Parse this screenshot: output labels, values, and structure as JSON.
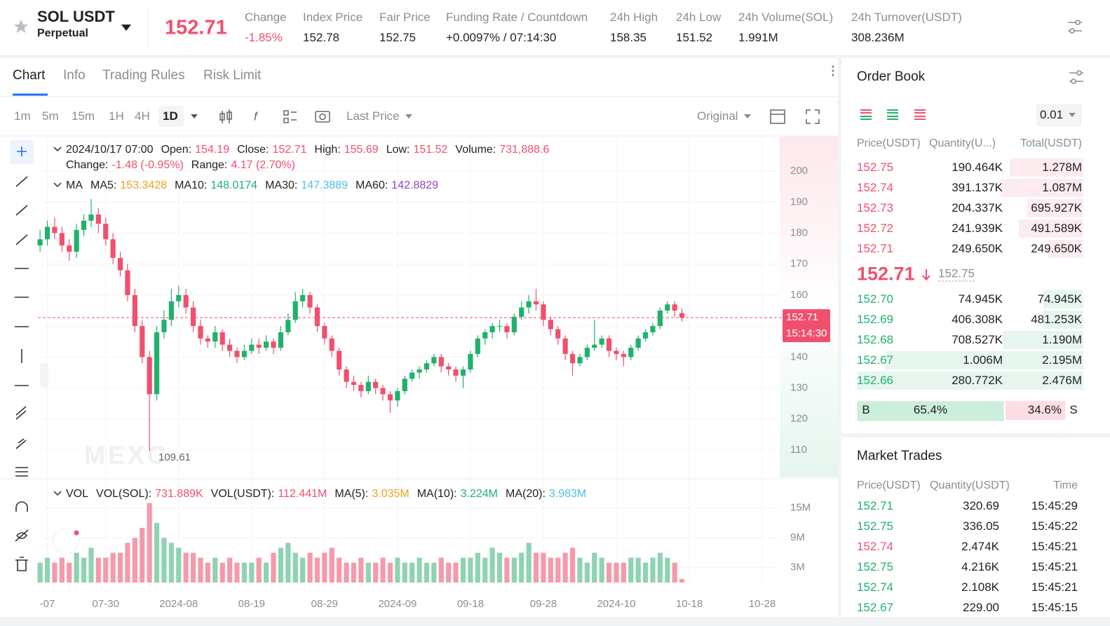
{
  "header": {
    "symbol": "SOL USDT",
    "contract": "Perpetual",
    "last_price": "152.71",
    "stats": [
      {
        "label": "Change",
        "value": "-1.85%"
      },
      {
        "label": "Index Price",
        "value": "152.78"
      },
      {
        "label": "Fair Price",
        "value": "152.75"
      },
      {
        "label": "Funding Rate / Countdown",
        "value": "+0.0097% / 07:14:30"
      },
      {
        "label": "24h High",
        "value": "158.35"
      },
      {
        "label": "24h Low",
        "value": "151.52"
      },
      {
        "label": "24h Volume(SOL)",
        "value": "1.991M"
      },
      {
        "label": "24h Turnover(USDT)",
        "value": "308.236M"
      }
    ]
  },
  "tabs": [
    "Chart",
    "Info",
    "Trading Rules",
    "Risk Limit"
  ],
  "toolbar": {
    "intervals": [
      "1m",
      "5m",
      "15m",
      "1H",
      "4H",
      "1D"
    ],
    "price_source": "Last Price",
    "view": "Original"
  },
  "chart_data": [
    {
      "type": "candlestick",
      "up_color": "#20b26c",
      "down_color": "#f0506e",
      "grid": true,
      "ylim": [
        101.4,
        211.1
      ],
      "yticks": [
        110,
        120,
        130,
        140,
        150,
        160,
        170,
        180,
        190,
        200
      ],
      "xlim": [
        -0.3,
        101.4
      ],
      "last_price_time": "15:14:30",
      "watermark": "MEXC",
      "ohlc_legend": {
        "date": "2024/10/17 07:00",
        "open": "Open:",
        "close": "Close:",
        "high": "High:",
        "low": "Low:",
        "volume": "Volume:",
        "volume_value": "731,888.6",
        "change": "Change:",
        "change_value": "-1.48 (-0.95%)",
        "range": "Range:",
        "range_value": "4.17 (2.70%)"
      },
      "ma_legend": {
        "title": "MA",
        "items": [
          {
            "label": "MA5:",
            "value": "153.3428",
            "color": "#f0a020"
          },
          {
            "label": "MA10:",
            "value": "148.0174",
            "color": "#1fae78"
          },
          {
            "label": "MA30:",
            "value": "147.3889",
            "color": "#4cc0e8"
          },
          {
            "label": "MA60:",
            "value": "142.8829",
            "color": "#8e44c9"
          }
        ]
      },
      "candles": [
        [
          176,
          181,
          174,
          178
        ],
        [
          178,
          184,
          176,
          182
        ],
        [
          182,
          185,
          178,
          180
        ],
        [
          180,
          182,
          174,
          176
        ],
        [
          176,
          178,
          171,
          174
        ],
        [
          174,
          183,
          172,
          181
        ],
        [
          181,
          186,
          179,
          184
        ],
        [
          184,
          191,
          182,
          186
        ],
        [
          186,
          188,
          180,
          183
        ],
        [
          183,
          185,
          176,
          178
        ],
        [
          178,
          180,
          170,
          172
        ],
        [
          172,
          174,
          166,
          168
        ],
        [
          168,
          170,
          158,
          160
        ],
        [
          160,
          162,
          148,
          150
        ],
        [
          150,
          152,
          138,
          140
        ],
        [
          140,
          142,
          109.61,
          128
        ],
        [
          128,
          150,
          126,
          148
        ],
        [
          148,
          155,
          146,
          152
        ],
        [
          152,
          162,
          150,
          158
        ],
        [
          158,
          163,
          156,
          160
        ],
        [
          160,
          162,
          154,
          156
        ],
        [
          156,
          158,
          148,
          150
        ],
        [
          150,
          152,
          144,
          146
        ],
        [
          146,
          147,
          143,
          145
        ],
        [
          145,
          150,
          143,
          148
        ],
        [
          148,
          149,
          142,
          144
        ],
        [
          144,
          146,
          140,
          142
        ],
        [
          142,
          143,
          138,
          140
        ],
        [
          140,
          144,
          139,
          142
        ],
        [
          142,
          146,
          141,
          144
        ],
        [
          144,
          146,
          141,
          143
        ],
        [
          143,
          147,
          142,
          145
        ],
        [
          145,
          146,
          141,
          143
        ],
        [
          143,
          150,
          142,
          148
        ],
        [
          148,
          154,
          147,
          152
        ],
        [
          152,
          161,
          151,
          158
        ],
        [
          158,
          162,
          156,
          160
        ],
        [
          160,
          161,
          154,
          156
        ],
        [
          156,
          157,
          148,
          150
        ],
        [
          150,
          151,
          144,
          146
        ],
        [
          146,
          147,
          140,
          142
        ],
        [
          142,
          143,
          134,
          136
        ],
        [
          136,
          137,
          130,
          132
        ],
        [
          132,
          134,
          129,
          131
        ],
        [
          131,
          132,
          127,
          129
        ],
        [
          129,
          134,
          128,
          132
        ],
        [
          132,
          133,
          128,
          130
        ],
        [
          130,
          131,
          126,
          128
        ],
        [
          128,
          129,
          122,
          126
        ],
        [
          126,
          130,
          124,
          129
        ],
        [
          129,
          134,
          128,
          133
        ],
        [
          133,
          136,
          132,
          135
        ],
        [
          135,
          137,
          133,
          136
        ],
        [
          136,
          139,
          135,
          138
        ],
        [
          138,
          141,
          137,
          140
        ],
        [
          140,
          141,
          135,
          137
        ],
        [
          137,
          138,
          134,
          136
        ],
        [
          136,
          137,
          132,
          134
        ],
        [
          134,
          137,
          130,
          136
        ],
        [
          136,
          142,
          135,
          141
        ],
        [
          141,
          147,
          140,
          146
        ],
        [
          146,
          149,
          144,
          148
        ],
        [
          148,
          151,
          146,
          150
        ],
        [
          150,
          152,
          148,
          150
        ],
        [
          150,
          151,
          146,
          148
        ],
        [
          148,
          154,
          147,
          153
        ],
        [
          153,
          158,
          152,
          156
        ],
        [
          156,
          160,
          154,
          158
        ],
        [
          158,
          162,
          155,
          157
        ],
        [
          157,
          158,
          150,
          152
        ],
        [
          152,
          153,
          147,
          149
        ],
        [
          149,
          150,
          144,
          146
        ],
        [
          146,
          147,
          139,
          141
        ],
        [
          141,
          142,
          134,
          138
        ],
        [
          138,
          141,
          137,
          140
        ],
        [
          140,
          144,
          139,
          143
        ],
        [
          143,
          152,
          142,
          144
        ],
        [
          144,
          147,
          143,
          146
        ],
        [
          146,
          147,
          140,
          142
        ],
        [
          142,
          143,
          139,
          141
        ],
        [
          141,
          142,
          137,
          140
        ],
        [
          140,
          144,
          139,
          143
        ],
        [
          143,
          147,
          142,
          146
        ],
        [
          146,
          149,
          145,
          148
        ],
        [
          148,
          151,
          147,
          150
        ],
        [
          150,
          156,
          149,
          155
        ],
        [
          155,
          158,
          154,
          157
        ],
        [
          157,
          158,
          153,
          155
        ],
        [
          154.19,
          155.69,
          151.52,
          152.71
        ]
      ]
    },
    {
      "type": "bar",
      "title": "VOL",
      "up_color": "#8fd3b2",
      "down_color": "#f59aaa",
      "grid": true,
      "ylim": [
        0,
        19.9
      ],
      "yticks": [
        {
          "value": 3,
          "label": "3M"
        },
        {
          "value": 9,
          "label": "9M"
        },
        {
          "value": 15,
          "label": "15M"
        }
      ],
      "xlim": [
        -0.3,
        101.4
      ],
      "xticks": [
        {
          "value": 1,
          "label": "-07"
        },
        {
          "value": 9,
          "label": "07-30"
        },
        {
          "value": 19,
          "label": "2024-08"
        },
        {
          "value": 29,
          "label": "08-19"
        },
        {
          "value": 39,
          "label": "08-29"
        },
        {
          "value": 49,
          "label": "2024-09"
        },
        {
          "value": 59,
          "label": "09-18"
        },
        {
          "value": 69,
          "label": "09-28"
        },
        {
          "value": 79,
          "label": "2024-10"
        },
        {
          "value": 89,
          "label": "10-18"
        },
        {
          "value": 99,
          "label": "10-28"
        }
      ],
      "legend": [
        {
          "label": "VOL(SOL):",
          "value": "731.889K",
          "color": "#f0506e"
        },
        {
          "label": "VOL(USDT):",
          "value": "112.441M",
          "color": "#f0506e"
        },
        {
          "label": "MA(5):",
          "value": "3.035M",
          "color": "#f0a020"
        },
        {
          "label": "MA(10):",
          "value": "3.224M",
          "color": "#1fae78"
        },
        {
          "label": "MA(20):",
          "value": "3.983M",
          "color": "#4cc0e8"
        }
      ],
      "values": [
        4,
        5,
        4,
        5,
        4,
        6,
        5,
        7,
        5,
        5,
        6,
        6,
        8,
        9,
        11,
        16,
        12,
        9,
        8,
        7,
        6,
        6,
        5,
        4,
        5,
        4,
        5,
        4,
        4,
        4,
        5,
        4,
        6,
        7,
        8,
        6,
        5,
        6,
        5,
        6,
        7,
        5,
        4,
        4,
        5,
        4,
        4,
        5,
        4,
        5,
        4,
        4,
        5,
        4,
        4,
        5,
        4,
        4,
        5,
        5,
        6,
        5,
        7,
        6,
        5,
        5,
        6,
        8,
        6,
        6,
        5,
        5,
        6,
        7,
        5,
        4,
        6,
        5,
        4,
        4,
        4,
        5,
        5,
        4,
        5,
        6,
        5,
        4,
        0.731889
      ]
    }
  ],
  "order_book": {
    "title": "Order Book",
    "precision": "0.01",
    "columns": [
      "Price(USDT)",
      "Quantity(U...)",
      "Total(USDT)"
    ],
    "asks": [
      [
        "152.75",
        "190.464K",
        "1.278M"
      ],
      [
        "152.74",
        "391.137K",
        "1.087M"
      ],
      [
        "152.73",
        "204.337K",
        "695.927K"
      ],
      [
        "152.72",
        "241.939K",
        "491.589K"
      ],
      [
        "152.71",
        "249.650K",
        "249.650K"
      ]
    ],
    "last_price": "152.71",
    "fair_price": "152.75",
    "bids": [
      [
        "152.70",
        "74.945K",
        "74.945K"
      ],
      [
        "152.69",
        "406.308K",
        "481.253K"
      ],
      [
        "152.68",
        "708.527K",
        "1.190M"
      ],
      [
        "152.67",
        "1.006M",
        "2.195M"
      ],
      [
        "152.66",
        "280.772K",
        "2.476M"
      ]
    ],
    "buy_label": "B",
    "buy_ratio": "65.4%",
    "sell_ratio": "34.6%",
    "sell_label": "S"
  },
  "market_trades": {
    "title": "Market Trades",
    "columns": [
      "Price(USDT)",
      "Quantity(USDT)",
      "Time"
    ],
    "rows": [
      {
        "price": "152.71",
        "quantity": "320.69",
        "time": "15:45:29",
        "side": "buy"
      },
      {
        "price": "152.75",
        "quantity": "336.05",
        "time": "15:45:22",
        "side": "buy"
      },
      {
        "price": "152.74",
        "quantity": "2.474K",
        "time": "15:45:21",
        "side": "sell"
      },
      {
        "price": "152.75",
        "quantity": "4.216K",
        "time": "15:45:21",
        "side": "buy"
      },
      {
        "price": "152.74",
        "quantity": "2.108K",
        "time": "15:45:21",
        "side": "buy"
      },
      {
        "price": "152.67",
        "quantity": "229.00",
        "time": "15:45:15",
        "side": "buy"
      }
    ]
  }
}
